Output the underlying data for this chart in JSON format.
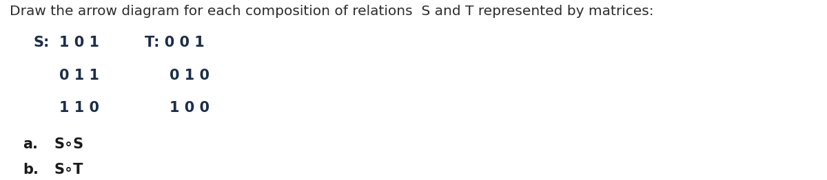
{
  "title_line": "Draw the arrow diagram for each composition of relations  S and T represented by matrices:",
  "S_label": "S:",
  "S_row1": "1 0 1",
  "S_row2": "0 1 1",
  "S_row3": "1 1 0",
  "T_label": "T: 0 0 1",
  "T_row2": "0 1 0",
  "T_row3": "1 0 0",
  "item_a_label": "a.",
  "item_a_text": "S∘S",
  "item_b_label": "b.",
  "item_b_text": "S∘T",
  "bg_color": "#ffffff",
  "title_color": "#2c2c2c",
  "matrix_color": "#1a2e4a",
  "items_color": "#1a1a1a",
  "title_fontsize": 14.5,
  "matrix_fontsize": 15.0,
  "items_fontsize": 15.0,
  "font_family": "DejaVu Sans"
}
